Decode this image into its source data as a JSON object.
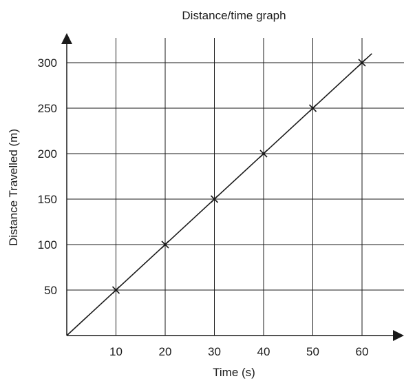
{
  "chart_data": {
    "type": "line",
    "title": "Distance/time graph",
    "xlabel": "Time (s)",
    "ylabel": "Distance Travelled (m)",
    "xlim": [
      0,
      70
    ],
    "ylim": [
      0,
      325
    ],
    "x_ticks": [
      10,
      20,
      30,
      40,
      50,
      60
    ],
    "y_ticks": [
      50,
      100,
      150,
      200,
      250,
      300
    ],
    "x_tick_labels": [
      "10",
      "20",
      "30",
      "40",
      "50",
      "60"
    ],
    "y_tick_labels": [
      "50",
      "100",
      "150",
      "200",
      "250",
      "300"
    ],
    "grid": true,
    "legend": "none",
    "series": [
      {
        "x": [
          10,
          20,
          30,
          40,
          50,
          60
        ],
        "y": [
          50,
          100,
          150,
          200,
          250,
          300
        ],
        "marker": "x",
        "line": "from-origin",
        "color": "#1a1a1a"
      }
    ]
  }
}
